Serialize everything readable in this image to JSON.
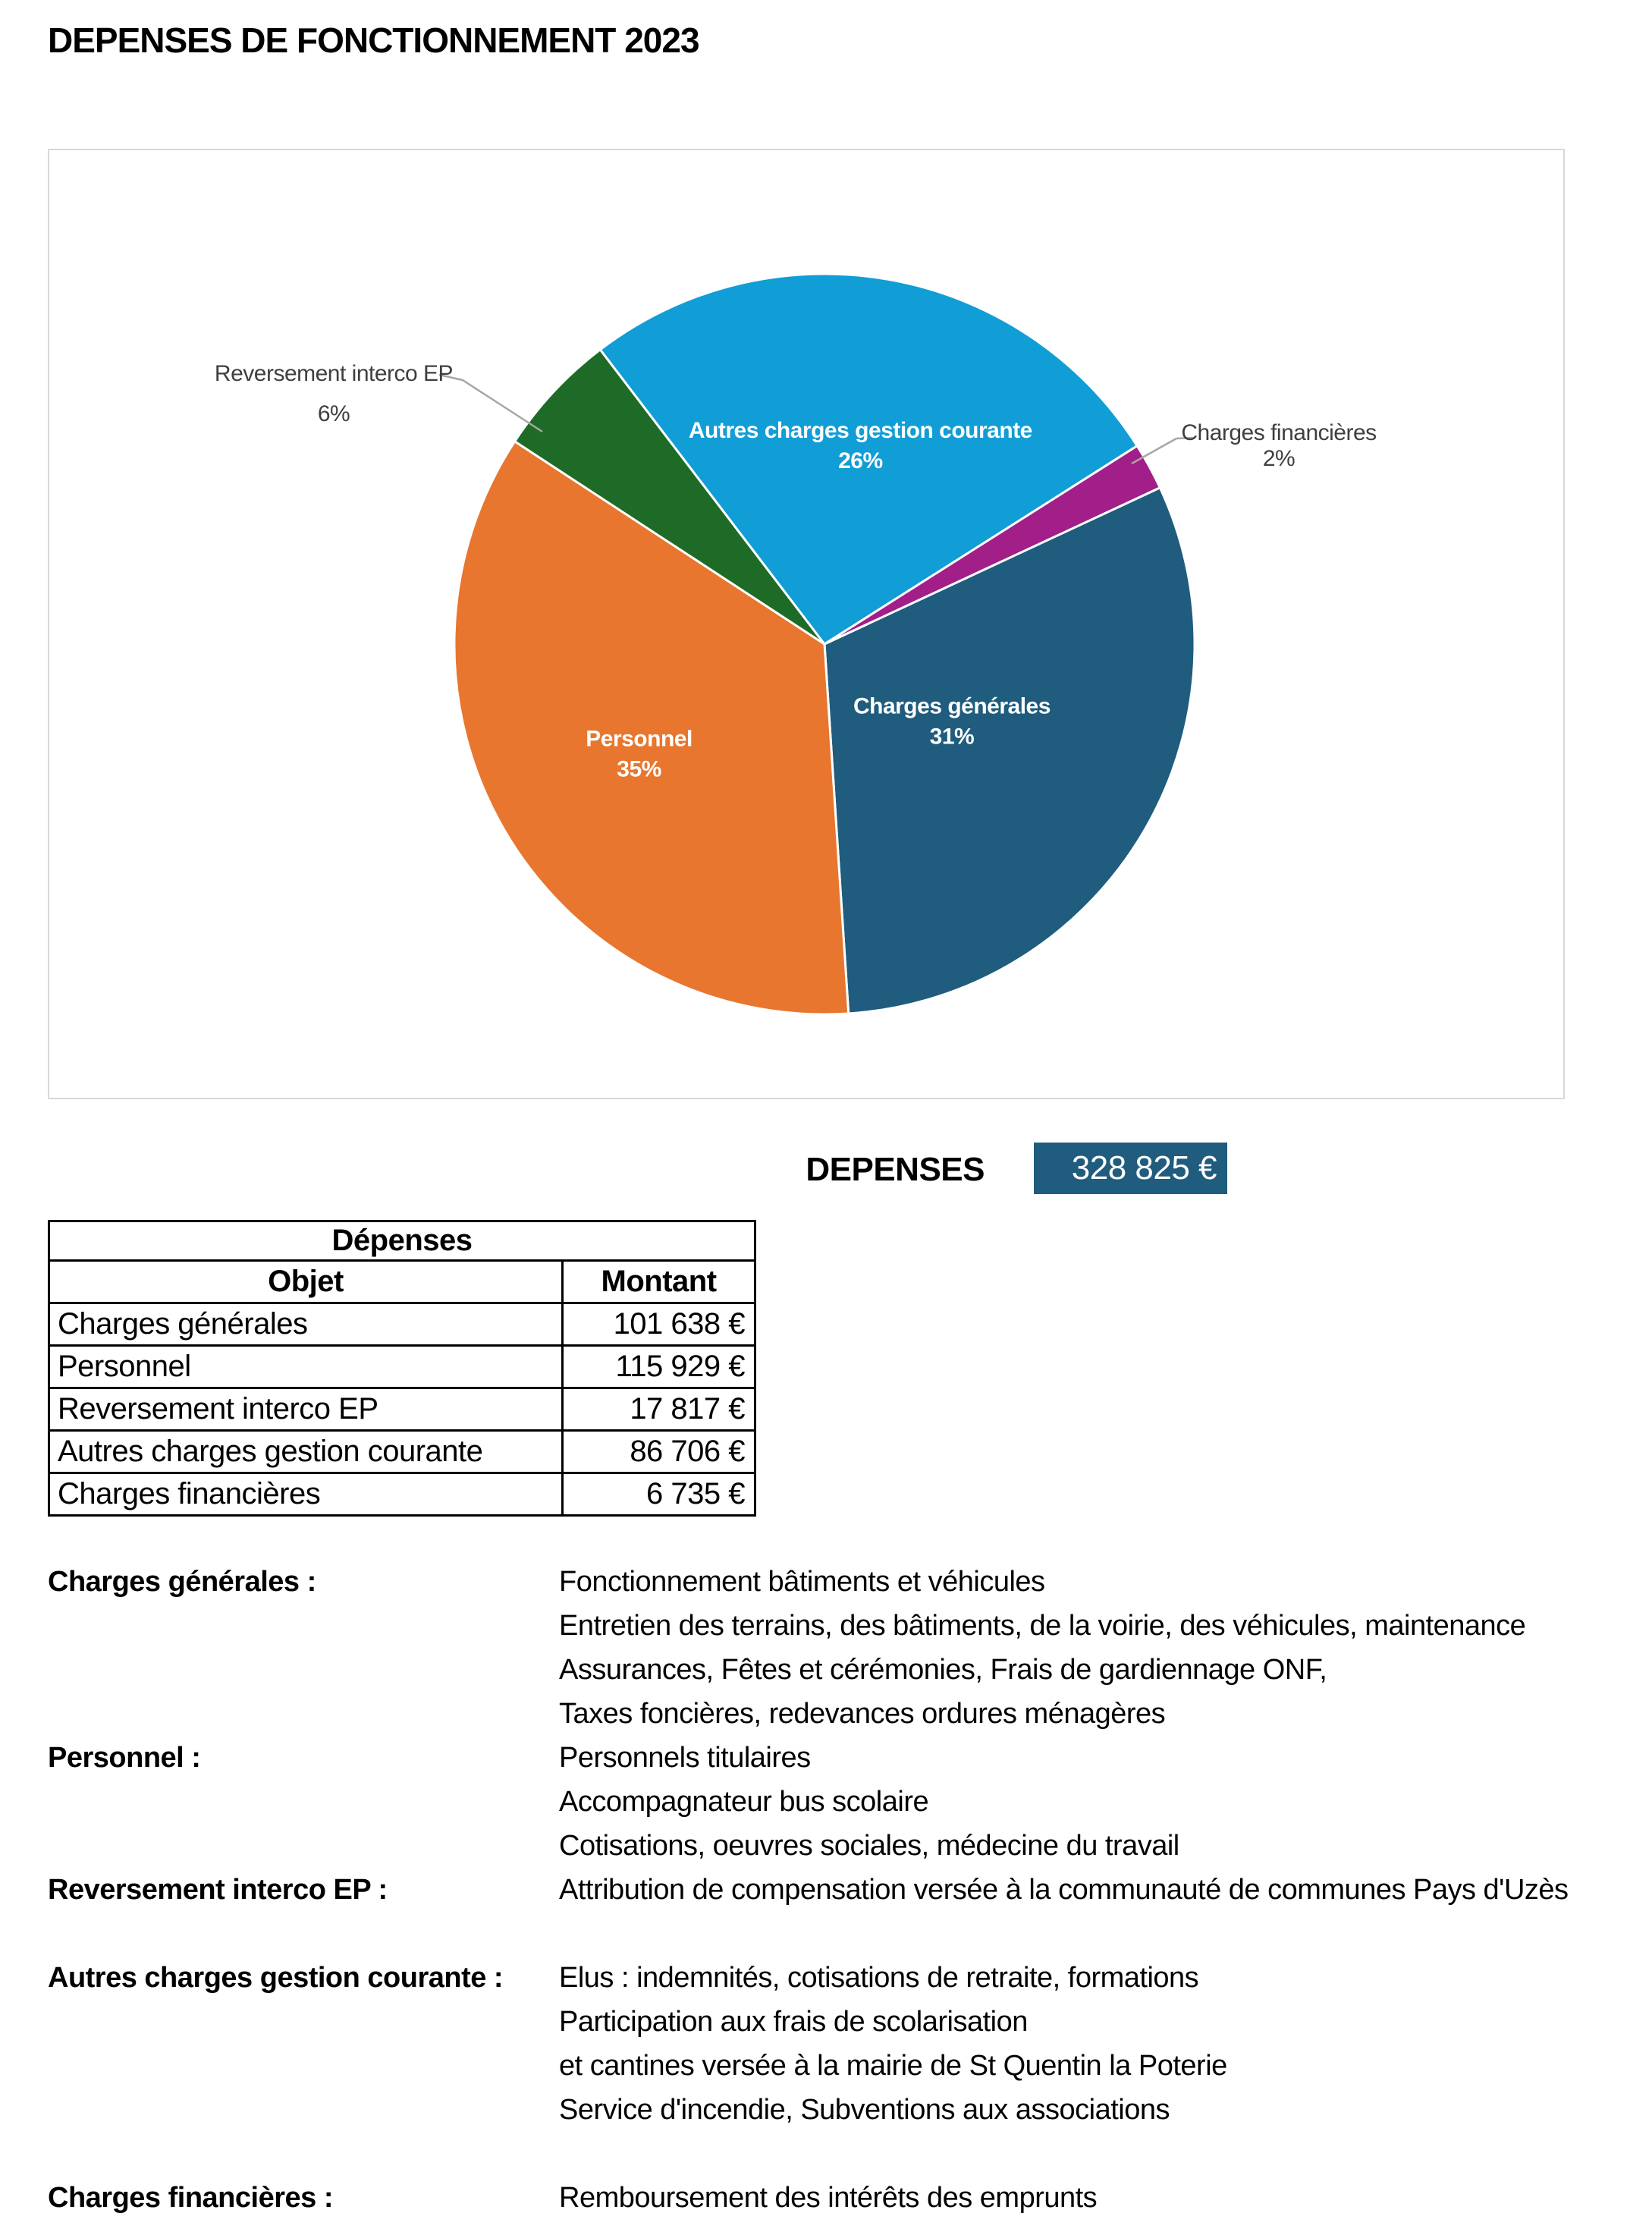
{
  "page": {
    "title": "DEPENSES DE FONCTIONNEMENT 2023"
  },
  "summary": {
    "label": "DEPENSES",
    "value": "328 825 €"
  },
  "chart_data": {
    "type": "pie",
    "title": "",
    "legend_position": "none",
    "start_angle_deg": 65,
    "total_value": 328825,
    "slices": [
      {
        "label": "Charges générales",
        "value": 101638,
        "percent": "31%",
        "color": "#1F5C7D",
        "label_style": "inside"
      },
      {
        "label": "Personnel",
        "value": 115929,
        "percent": "35%",
        "color": "#E8762E",
        "label_style": "inside"
      },
      {
        "label": "Reversement interco EP",
        "value": 17817,
        "percent": "6%",
        "color": "#1E6B27",
        "label_style": "outside"
      },
      {
        "label": "Autres charges gestion courante",
        "value": 86706,
        "percent": "26%",
        "color": "#119DD6",
        "label_style": "inside"
      },
      {
        "label": "Charges financières",
        "value": 6735,
        "percent": "2%",
        "color": "#A21E88",
        "label_style": "outside"
      }
    ],
    "colors": {
      "leader_line": "#A6A6A6",
      "frame_border": "#D9D9D9",
      "summary_box": "#1F5C7D"
    }
  },
  "table": {
    "title": "Dépenses",
    "columns": [
      "Objet",
      "Montant"
    ],
    "rows": [
      [
        "Charges générales",
        "101 638 €"
      ],
      [
        "Personnel",
        "115 929 €"
      ],
      [
        "Reversement interco EP",
        "17 817 €"
      ],
      [
        "Autres charges gestion courante",
        "86 706 €"
      ],
      [
        "Charges financières",
        "6 735 €"
      ]
    ]
  },
  "descriptions": [
    {
      "label": "Charges générales :",
      "lines": [
        "Fonctionnement bâtiments et véhicules",
        "Entretien des terrains, des bâtiments, de la voirie, des véhicules, maintenance",
        "Assurances, Fêtes et cérémonies, Frais de gardiennage ONF,",
        "Taxes foncières, redevances ordures ménagères"
      ],
      "gap_after": false
    },
    {
      "label": "Personnel :",
      "lines": [
        "Personnels titulaires",
        "Accompagnateur bus scolaire",
        "Cotisations, oeuvres sociales, médecine du travail"
      ],
      "gap_after": false
    },
    {
      "label": "Reversement interco EP :",
      "lines": [
        "Attribution de compensation versée à la communauté de communes Pays d'Uzès"
      ],
      "gap_after": true
    },
    {
      "label": "Autres charges gestion courante :",
      "lines": [
        "Elus : indemnités, cotisations de retraite, formations",
        "Participation aux frais de scolarisation",
        "et cantines versée à la mairie de St Quentin la Poterie",
        "Service d'incendie, Subventions aux associations"
      ],
      "gap_after": true
    },
    {
      "label": "Charges financières :",
      "lines": [
        "Remboursement des intérêts des emprunts"
      ],
      "gap_after": false
    }
  ]
}
